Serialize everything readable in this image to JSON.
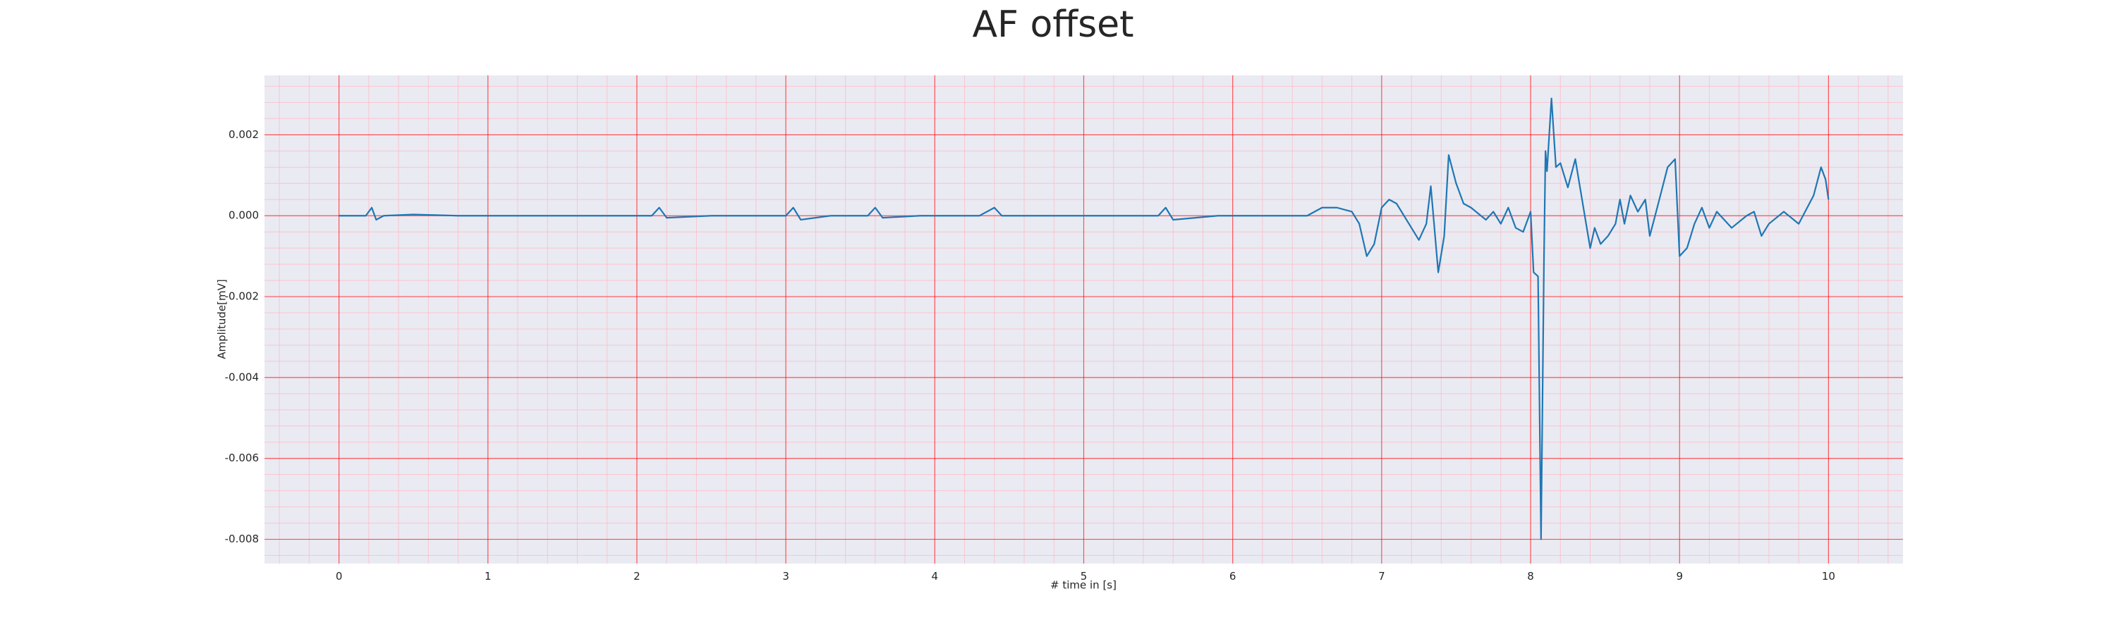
{
  "chart_data": {
    "type": "line",
    "title": "AF offset",
    "xlabel": "# time in [s]",
    "ylabel": "Amplitude[mV]",
    "xlim": [
      -0.5,
      10.5
    ],
    "ylim": [
      -0.0086,
      0.00347
    ],
    "xticks": [
      0,
      1,
      2,
      3,
      4,
      5,
      6,
      7,
      8,
      9,
      10
    ],
    "yticks": [
      -0.008,
      -0.006,
      -0.004,
      -0.002,
      {
        "value": 0,
        "label": "0.000"
      },
      0.002
    ],
    "grid": true,
    "minor_grid": true,
    "series": [
      {
        "color": "#1f77b4",
        "x": [
          0,
          0.1,
          0.18,
          0.22,
          0.25,
          0.3,
          0.5,
          0.8,
          1.2,
          1.6,
          2.0,
          2.1,
          2.15,
          2.2,
          2.5,
          2.8,
          3.0,
          3.05,
          3.1,
          3.3,
          3.55,
          3.6,
          3.65,
          3.9,
          4.3,
          4.4,
          4.45,
          4.8,
          5.2,
          5.5,
          5.55,
          5.6,
          5.9,
          6.2,
          6.5,
          6.6,
          6.7,
          6.8,
          6.85,
          6.9,
          6.95,
          7.0,
          7.05,
          7.1,
          7.2,
          7.25,
          7.3,
          7.33,
          7.38,
          7.42,
          7.45,
          7.5,
          7.55,
          7.6,
          7.7,
          7.75,
          7.8,
          7.85,
          7.9,
          7.95,
          8.0,
          8.02,
          8.05,
          8.07,
          8.09,
          8.1,
          8.11,
          8.14,
          8.17,
          8.2,
          8.25,
          8.3,
          8.35,
          8.4,
          8.43,
          8.47,
          8.52,
          8.57,
          8.6,
          8.63,
          8.67,
          8.72,
          8.77,
          8.8,
          8.85,
          8.92,
          8.97,
          9.0,
          9.05,
          9.1,
          9.15,
          9.18,
          9.2,
          9.25,
          9.3,
          9.35,
          9.45,
          9.5,
          9.55,
          9.6,
          9.7,
          9.8,
          9.9,
          9.95,
          9.98,
          10.0
        ],
        "values": [
          0,
          0,
          0,
          0.0002,
          -0.0001,
          0,
          3e-05,
          0,
          0,
          0,
          0,
          0,
          0.0002,
          -5e-05,
          0,
          0,
          0,
          0.0002,
          -0.0001,
          0,
          0,
          0.0002,
          -5e-05,
          0,
          0,
          0.0002,
          0,
          0,
          0,
          0,
          0.0002,
          -0.0001,
          0,
          0,
          0,
          0.0002,
          0.0002,
          0.0001,
          -0.0002,
          -0.001,
          -0.0007,
          0.0002,
          0.0004,
          0.0003,
          -0.0003,
          -0.0006,
          -0.0002,
          0.00073,
          -0.0014,
          -0.0005,
          0.0015,
          0.0008,
          0.0003,
          0.0002,
          -0.0001,
          0.0001,
          -0.0002,
          0.0002,
          -0.0003,
          -0.0004,
          0.0001,
          -0.0014,
          -0.0015,
          -0.008,
          -0.001,
          0.0016,
          0.0011,
          0.0029,
          0.0012,
          0.0013,
          0.0007,
          0.0014,
          0.0003,
          -0.0008,
          -0.0003,
          -0.0007,
          -0.0005,
          -0.0002,
          0.0004,
          -0.0002,
          0.0005,
          0.0001,
          0.0004,
          -0.0005,
          0.0002,
          0.0012,
          0.0014,
          -0.001,
          -0.0008,
          -0.0002,
          0.0002,
          -0.0001,
          -0.0003,
          0.0001,
          -0.0001,
          -0.0003,
          0,
          0.0001,
          -0.0005,
          -0.0002,
          0.0001,
          -0.0002,
          0.0005,
          0.0012,
          0.0009,
          0.0004
        ]
      }
    ]
  }
}
